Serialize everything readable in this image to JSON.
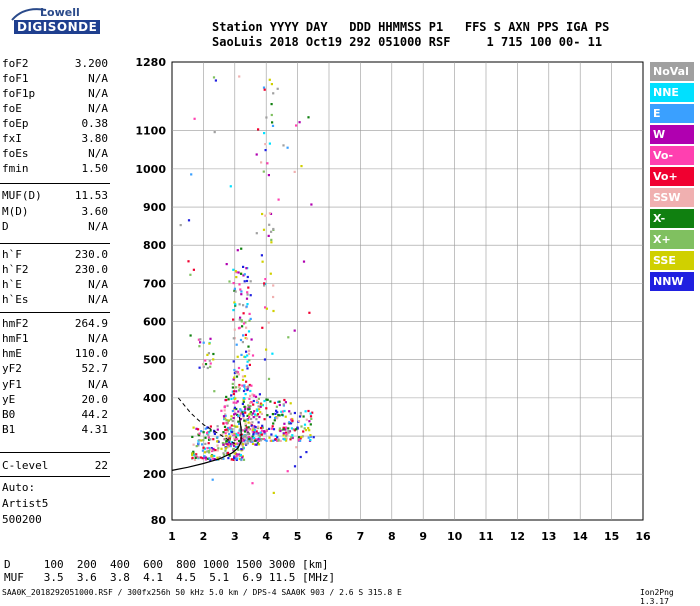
{
  "logo": {
    "brand": "Lowell",
    "product": "DIGISONDE"
  },
  "header": {
    "line1": "Station YYYY DAY   DDD HHMMSS P1   FFS S AXN PPS IGA PS",
    "line2": "SaoLuis 2018 Oct19 292 051000 RSF     1 715 100 00- 11"
  },
  "params": [
    {
      "name": "foF2",
      "value": "3.200"
    },
    {
      "name": "foF1",
      "value": "N/A"
    },
    {
      "name": "foF1p",
      "value": "N/A"
    },
    {
      "name": "foE",
      "value": "N/A"
    },
    {
      "name": "foEp",
      "value": "0.38"
    },
    {
      "name": "fxI",
      "value": "3.80"
    },
    {
      "name": "foEs",
      "value": "N/A"
    },
    {
      "name": "fmin",
      "value": "1.50"
    },
    {
      "name": "MUF(D)",
      "value": "11.53"
    },
    {
      "name": "M(D)",
      "value": "3.60"
    },
    {
      "name": "D",
      "value": "N/A"
    },
    {
      "name": "h`F",
      "value": "230.0"
    },
    {
      "name": "h`F2",
      "value": "230.0"
    },
    {
      "name": "h`E",
      "value": "N/A"
    },
    {
      "name": "h`Es",
      "value": "N/A"
    },
    {
      "name": "hmF2",
      "value": "264.9"
    },
    {
      "name": "hmF1",
      "value": "N/A"
    },
    {
      "name": "hmE",
      "value": "110.0"
    },
    {
      "name": "yF2",
      "value": "52.7"
    },
    {
      "name": "yF1",
      "value": "N/A"
    },
    {
      "name": "yE",
      "value": "20.0"
    },
    {
      "name": "B0",
      "value": "44.2"
    },
    {
      "name": "B1",
      "value": "4.31"
    },
    {
      "name": "C-level",
      "value": "22"
    }
  ],
  "auto": {
    "line1": "Auto:",
    "line2": "Artist5",
    "line3": "500200"
  },
  "footer": {
    "d_row": "D     100  200  400  600  800 1000 1500 3000 [km]",
    "muf_row": "MUF   3.5  3.6  3.8  4.1  4.5  5.1  6.9 11.5 [MHz]",
    "file_info": "SAA0K_2018292051000.RSF / 300fx256h 50 kHz 5.0 km / DPS-4 SAA0K 903 / 2.6 S 315.8 E",
    "version": "Ion2Png 1.3.17"
  },
  "legend": [
    {
      "label": "NoVal",
      "color": "#a0a0a0"
    },
    {
      "label": "NNE",
      "color": "#00e0ff"
    },
    {
      "label": "E",
      "color": "#3aa0ff"
    },
    {
      "label": "W",
      "color": "#b000b0"
    },
    {
      "label": "Vo-",
      "color": "#ff40b0"
    },
    {
      "label": "Vo+",
      "color": "#f00030"
    },
    {
      "label": "SSW",
      "color": "#f0b0b0"
    },
    {
      "label": "X-",
      "color": "#108010"
    },
    {
      "label": "X+",
      "color": "#80c060"
    },
    {
      "label": "SSE",
      "color": "#d0d000"
    },
    {
      "label": "NNW",
      "color": "#2020e0"
    }
  ],
  "chart_data": {
    "type": "scatter",
    "xlim": [
      1,
      16
    ],
    "ylim": [
      80,
      1280
    ],
    "x_ticks": [
      1,
      2,
      3,
      4,
      5,
      6,
      7,
      8,
      9,
      10,
      11,
      12,
      13,
      14,
      15,
      16
    ],
    "y_ticks": [
      80,
      200,
      300,
      400,
      500,
      600,
      700,
      800,
      900,
      1000,
      1100,
      1280
    ],
    "grid": true,
    "trace_profile": [
      [
        1.0,
        210
      ],
      [
        1.5,
        218
      ],
      [
        2.0,
        228
      ],
      [
        2.5,
        240
      ],
      [
        2.9,
        255
      ],
      [
        3.1,
        268
      ],
      [
        3.2,
        285
      ],
      [
        3.2,
        320
      ],
      [
        3.15,
        350
      ]
    ],
    "trace_dashed": [
      [
        1.2,
        400
      ],
      [
        1.6,
        360
      ],
      [
        2.0,
        330
      ],
      [
        2.4,
        310
      ],
      [
        2.8,
        290
      ],
      [
        3.0,
        280
      ]
    ],
    "echo_clusters": [
      {
        "x": [
          1.6,
          3.3
        ],
        "y": [
          240,
          330
        ],
        "n": 220
      },
      {
        "x": [
          2.6,
          3.8
        ],
        "y": [
          280,
          420
        ],
        "n": 200
      },
      {
        "x": [
          3.2,
          4.8
        ],
        "y": [
          290,
          400
        ],
        "n": 160
      },
      {
        "x": [
          4.5,
          5.5
        ],
        "y": [
          290,
          370
        ],
        "n": 60
      },
      {
        "x": [
          2.9,
          3.5
        ],
        "y": [
          420,
          750
        ],
        "n": 120
      },
      {
        "x": [
          1.8,
          2.3
        ],
        "y": [
          480,
          560
        ],
        "n": 20
      },
      {
        "x": [
          3.8,
          4.2
        ],
        "y": [
          600,
          1250
        ],
        "n": 40
      },
      {
        "x": [
          1.1,
          5.5
        ],
        "y": [
          150,
          1280
        ],
        "n": 60
      }
    ],
    "echo_colors": [
      "#b000b0",
      "#ff40b0",
      "#f00030",
      "#108010",
      "#80c060",
      "#d0d000",
      "#2020e0",
      "#3aa0ff",
      "#00e0ff",
      "#f0b0b0",
      "#a0a0a0"
    ]
  }
}
